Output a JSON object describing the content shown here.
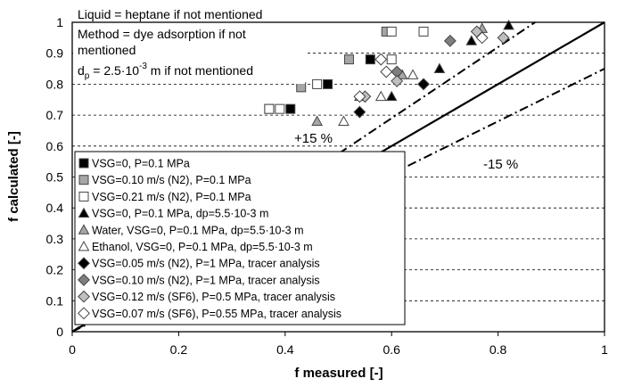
{
  "chart_data": {
    "type": "scatter",
    "title": "",
    "xlabel": "f measured [-]",
    "ylabel": "f calculated [-]",
    "xlim": [
      0,
      1
    ],
    "ylim": [
      0,
      1
    ],
    "x_ticks": [
      "0",
      "0.2",
      "0.4",
      "0.6",
      "0.8",
      "1"
    ],
    "y_ticks": [
      "0",
      "0.1",
      "0.2",
      "0.3",
      "0.4",
      "0.5",
      "0.6",
      "0.7",
      "0.8",
      "0.9",
      "1"
    ],
    "grid": "horizontal dashed",
    "legend_position": "bottom-left",
    "notes": {
      "line1": "Liquid = heptane if not mentioned",
      "line2": "Method = dye adsorption if not",
      "line3": "mentioned",
      "line4_main": "d",
      "line4_sub": "p",
      "line4_rest": " = 2.5·10",
      "line4_sup": "-3",
      "line4_end": " m if not mentioned"
    },
    "annotations": {
      "plus": "+15 %",
      "minus": "-15 %"
    },
    "reference_lines": [
      {
        "name": "parity",
        "slope": 1.0,
        "style": "solid"
      },
      {
        "name": "plus15",
        "slope": 1.15,
        "style": "dash-dot"
      },
      {
        "name": "minus15",
        "slope": 0.85,
        "style": "dash-dot"
      }
    ],
    "series": [
      {
        "name": "VSG=0, P=0.1 MPa",
        "marker": "square",
        "fill": "#000000",
        "points": [
          [
            0.41,
            0.72
          ],
          [
            0.56,
            0.88
          ],
          [
            0.48,
            0.8
          ]
        ]
      },
      {
        "name": "VSG=0.10 m/s (N2), P=0.1 MPa",
        "marker": "square",
        "fill": "#a6a6a6",
        "points": [
          [
            0.52,
            0.88
          ],
          [
            0.59,
            0.97
          ],
          [
            0.43,
            0.79
          ],
          [
            0.37,
            0.72
          ]
        ]
      },
      {
        "name": "VSG=0.21 m/s (N2), P=0.1 MPa",
        "marker": "square",
        "fill": "#ffffff",
        "points": [
          [
            0.6,
            0.97
          ],
          [
            0.66,
            0.97
          ],
          [
            0.6,
            0.88
          ],
          [
            0.46,
            0.8
          ],
          [
            0.39,
            0.72
          ],
          [
            0.37,
            0.72
          ]
        ]
      },
      {
        "name": "VSG=0, P=0.1 MPa, dp=5.5·10-3 m",
        "marker": "triangle",
        "fill": "#000000",
        "points": [
          [
            0.82,
            0.99
          ],
          [
            0.75,
            0.94
          ],
          [
            0.69,
            0.85
          ],
          [
            0.6,
            0.76
          ]
        ]
      },
      {
        "name": "Water, VSG=0, P=0.1 MPa, dp=5.5·10-3 m",
        "marker": "triangle",
        "fill": "#a6a6a6",
        "points": [
          [
            0.77,
            0.98
          ],
          [
            0.62,
            0.83
          ],
          [
            0.54,
            0.76
          ],
          [
            0.46,
            0.68
          ]
        ]
      },
      {
        "name": "Ethanol, VSG=0, P=0.1 MPa, dp=5.5·10-3 m",
        "marker": "triangle",
        "fill": "#ffffff",
        "points": [
          [
            0.64,
            0.83
          ],
          [
            0.58,
            0.76
          ],
          [
            0.51,
            0.68
          ]
        ]
      },
      {
        "name": "VSG=0.05 m/s (N2), P=1 MPa, tracer analysis",
        "marker": "diamond",
        "fill": "#000000",
        "points": [
          [
            0.66,
            0.8
          ],
          [
            0.54,
            0.71
          ]
        ]
      },
      {
        "name": "VSG=0.10 m/s (N2), P=1 MPa, tracer analysis",
        "marker": "diamond",
        "fill": "#7f7f7f",
        "points": [
          [
            0.71,
            0.94
          ],
          [
            0.61,
            0.84
          ]
        ]
      },
      {
        "name": "VSG=0.12 m/s (SF6), P=0.5 MPa, tracer analysis",
        "marker": "diamond",
        "fill": "#bfbfbf",
        "points": [
          [
            0.81,
            0.95
          ],
          [
            0.76,
            0.97
          ],
          [
            0.61,
            0.81
          ],
          [
            0.55,
            0.76
          ]
        ]
      },
      {
        "name": "VSG=0.07 m/s (SF6), P=0.55 MPa, tracer analysis",
        "marker": "diamond",
        "fill": "#ffffff",
        "points": [
          [
            0.77,
            0.95
          ],
          [
            0.59,
            0.84
          ],
          [
            0.58,
            0.88
          ],
          [
            0.54,
            0.76
          ]
        ]
      }
    ]
  }
}
